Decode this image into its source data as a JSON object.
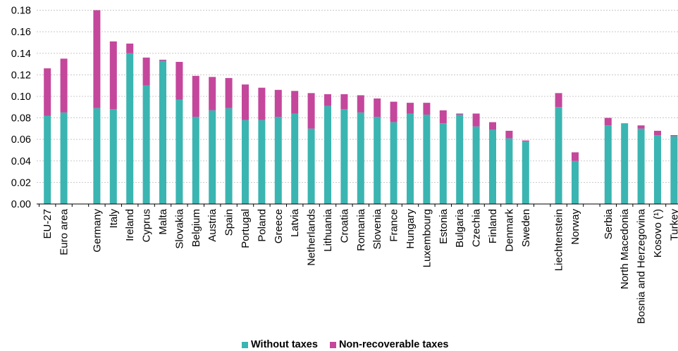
{
  "chart_data": {
    "type": "bar",
    "stacked": true,
    "category_groups": [
      [
        "EU-27",
        "Euro area"
      ],
      [
        "Germany",
        "Italy",
        "Ireland",
        "Cyprus",
        "Malta",
        "Slovakia",
        "Belgium",
        "Austria",
        "Spain",
        "Portugal",
        "Poland",
        "Greece",
        "Latvia",
        "Netherlands",
        "Lithuania",
        "Croatia",
        "Romania",
        "Slovenia",
        "France",
        "Hungary",
        "Luxembourg",
        "Estonia",
        "Bulgaria",
        "Czechia",
        "Finland",
        "Denmark",
        "Sweden"
      ],
      [
        "Liechtenstein",
        "Norway"
      ],
      [
        "Serbia",
        "North Macedonia",
        "Bosnia and Herzegovina",
        "Kosovo (¹)",
        "Turkey"
      ]
    ],
    "series": [
      {
        "name": "Without taxes",
        "color": "#3bb5b1",
        "values": [
          0.082,
          0.085,
          0.089,
          0.088,
          0.14,
          0.11,
          0.133,
          0.097,
          0.081,
          0.087,
          0.089,
          0.078,
          0.078,
          0.081,
          0.084,
          0.07,
          0.091,
          0.088,
          0.085,
          0.081,
          0.076,
          0.084,
          0.083,
          0.075,
          0.083,
          0.072,
          0.069,
          0.061,
          0.058,
          0.09,
          0.04,
          0.073,
          0.075,
          0.07,
          0.064,
          0.063
        ]
      },
      {
        "name": "Non-recoverable taxes",
        "color": "#c4479c",
        "values": [
          0.044,
          0.05,
          0.091,
          0.063,
          0.009,
          0.026,
          0.001,
          0.035,
          0.038,
          0.031,
          0.028,
          0.033,
          0.03,
          0.025,
          0.021,
          0.033,
          0.011,
          0.014,
          0.016,
          0.017,
          0.019,
          0.01,
          0.011,
          0.012,
          0.001,
          0.012,
          0.007,
          0.007,
          0.001,
          0.013,
          0.008,
          0.007,
          0.0,
          0.003,
          0.004,
          0.001
        ]
      }
    ],
    "ylim": [
      0,
      0.18
    ],
    "y_tick_labels": [
      "0.00",
      "0.02",
      "0.04",
      "0.06",
      "0.08",
      "0.10",
      "0.12",
      "0.14",
      "0.16",
      "0.18"
    ],
    "grid": true,
    "legend_position": "bottom",
    "gridline_color": "#c8c8c8",
    "axis_color": "#000000"
  }
}
